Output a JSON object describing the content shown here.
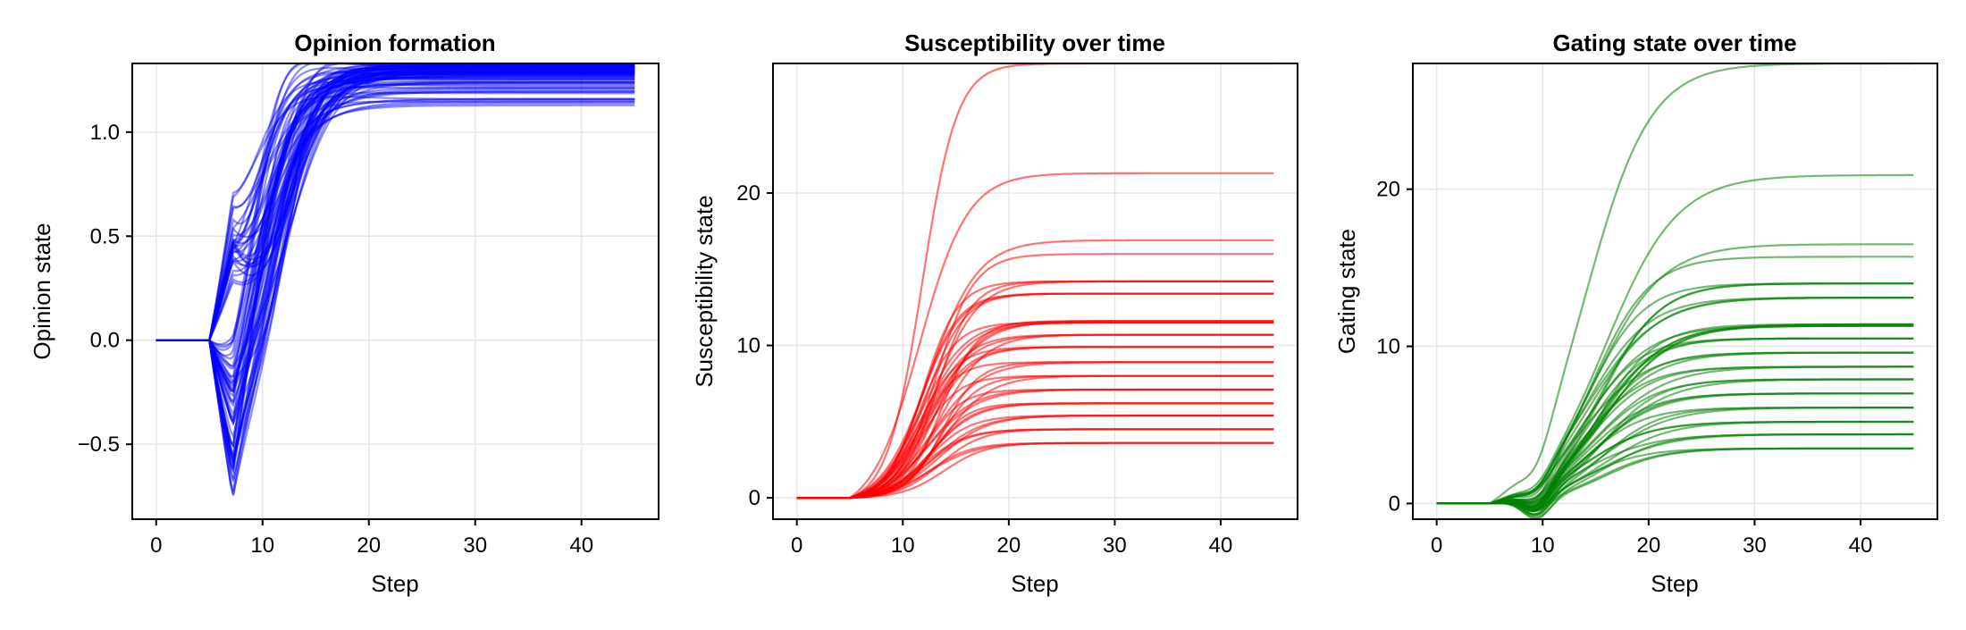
{
  "chart_data": [
    {
      "type": "line",
      "title": "Opinion formation",
      "xlabel": "Step",
      "ylabel": "Opinion state",
      "xlim": [
        -2.25,
        47.25
      ],
      "ylim": [
        -0.86,
        1.33
      ],
      "xticks": [
        0,
        10,
        20,
        30,
        40
      ],
      "yticks": [
        -0.5,
        0.0,
        0.5,
        1.0
      ],
      "ytick_labels": [
        "−0.5",
        "0.0",
        "0.5",
        "1.0"
      ],
      "grid": true,
      "color": "#0000ff",
      "line_opacity": 0.45,
      "series_count": 80,
      "steps": [
        0,
        45
      ],
      "value_range": {
        "initial": 0.0,
        "min": -0.86,
        "final": 1.33
      },
      "description": "Many trajectories start at 0, remain flat until step 5, split into positive and negative branches around step 7, then all converge to 1.33 by roughly step 20."
    },
    {
      "type": "line",
      "title": "Susceptibility over time",
      "xlabel": "Step",
      "ylabel": "Susceptibility state",
      "xlim": [
        -2.25,
        47.25
      ],
      "ylim": [
        -1.4,
        28.5
      ],
      "xticks": [
        0,
        10,
        20,
        30,
        40
      ],
      "yticks": [
        0,
        10,
        20
      ],
      "grid": true,
      "color": "#ff0000",
      "line_opacity": 0.55,
      "steps": [
        0,
        45
      ],
      "final_values": [
        28.5,
        21.3,
        16.9,
        16.0,
        14.2,
        13.4,
        11.6,
        11.5,
        10.7,
        9.9,
        8.9,
        8.0,
        7.1,
        6.2,
        5.4,
        4.5,
        3.6
      ],
      "initial_value": 0
    },
    {
      "type": "line",
      "title": "Gating state over time",
      "xlabel": "Step",
      "ylabel": "Gating state",
      "xlim": [
        -2.25,
        47.25
      ],
      "ylim": [
        -1.0,
        28.0
      ],
      "xticks": [
        0,
        10,
        20,
        30,
        40
      ],
      "yticks": [
        0,
        10,
        20
      ],
      "grid": true,
      "color": "#008000",
      "line_opacity": 0.55,
      "steps": [
        0,
        45
      ],
      "final_values": [
        28.0,
        20.9,
        16.5,
        15.7,
        14.0,
        13.1,
        11.4,
        11.3,
        10.5,
        9.6,
        8.7,
        7.9,
        7.0,
        6.1,
        5.2,
        4.4,
        3.5
      ],
      "initial_value": 0
    }
  ]
}
